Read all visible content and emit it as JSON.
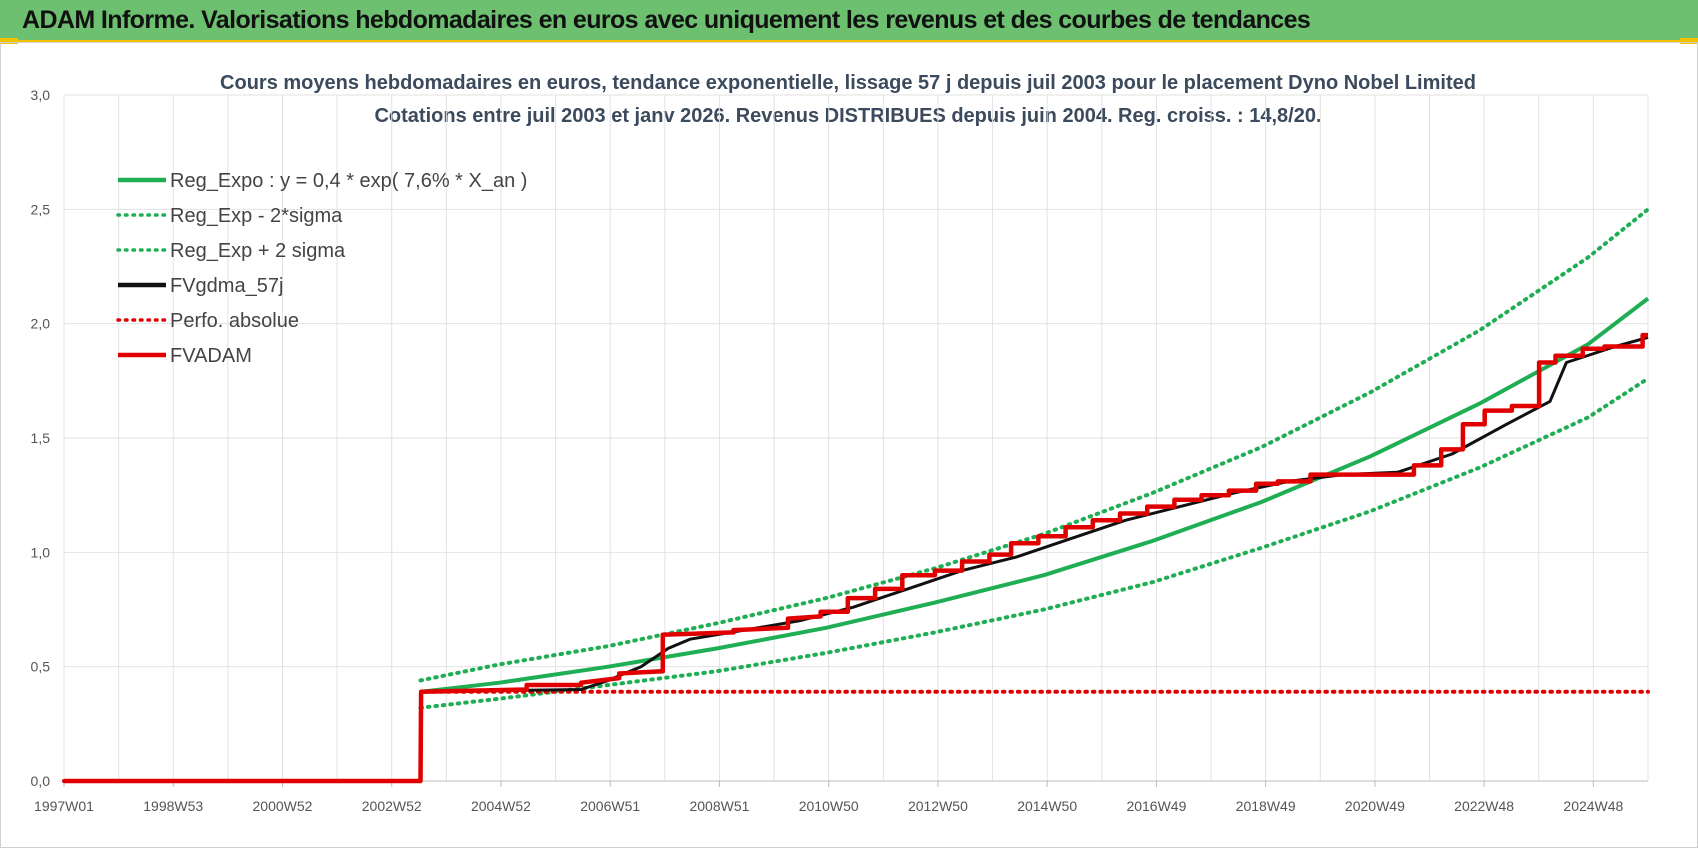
{
  "banner": {
    "title": "ADAM Informe. Valorisations hebdomadaires en euros avec uniquement les revenus et des courbes de tendances"
  },
  "chart_data": {
    "type": "line",
    "title": "Cours moyens  hebdomadaires en euros, tendance exponentielle, lissage 57 j depuis juil 2003 pour le placement Dyno Nobel Limited",
    "subtitle": "Cotations entre juil 2003 et janv 2026. Revenus DISTRIBUES depuis juin 2004.  Reg. croiss. : 14,8/20.",
    "xlabel": "",
    "ylabel": "",
    "x_ticks": [
      "1997W01",
      "1998W53",
      "2000W52",
      "2002W52",
      "2004W52",
      "2006W51",
      "2008W51",
      "2010W50",
      "2012W50",
      "2014W50",
      "2016W49",
      "2018W49",
      "2020W49",
      "2022W48",
      "2024W48"
    ],
    "y_ticks": [
      "0,0",
      "0,5",
      "1,0",
      "1,5",
      "2,0",
      "2,5",
      "3,0"
    ],
    "xlim": [
      1997.0,
      2026.1
    ],
    "ylim": [
      0,
      3.0
    ],
    "grid": true,
    "legend_position": "top-left",
    "series": [
      {
        "name": "Reg_Expo : y = 0,4 * exp( 7,6% *  X_an )",
        "color": "#1fae54",
        "style": "solid",
        "x": [
          2003.55,
          2005,
          2007,
          2009,
          2011,
          2013,
          2015,
          2017,
          2019,
          2021,
          2023,
          2025,
          2026.1
        ],
        "y": [
          0.39,
          0.43,
          0.5,
          0.58,
          0.67,
          0.78,
          0.9,
          1.05,
          1.22,
          1.42,
          1.65,
          1.91,
          2.11
        ]
      },
      {
        "name": "Reg_Exp - 2*sigma",
        "color": "#1fae54",
        "style": "dotted",
        "x": [
          2003.55,
          2005,
          2007,
          2009,
          2011,
          2013,
          2015,
          2017,
          2019,
          2021,
          2023,
          2025,
          2026.1
        ],
        "y": [
          0.32,
          0.36,
          0.42,
          0.48,
          0.56,
          0.65,
          0.75,
          0.87,
          1.02,
          1.18,
          1.37,
          1.59,
          1.76
        ]
      },
      {
        "name": "Reg_Exp + 2 sigma",
        "color": "#1fae54",
        "style": "dotted",
        "x": [
          2003.55,
          2005,
          2007,
          2009,
          2011,
          2013,
          2015,
          2017,
          2019,
          2021,
          2023,
          2025,
          2026.1
        ],
        "y": [
          0.44,
          0.51,
          0.59,
          0.69,
          0.8,
          0.93,
          1.08,
          1.26,
          1.46,
          1.7,
          1.97,
          2.29,
          2.5
        ]
      },
      {
        "name": "FVgdma_57j",
        "color": "#111111",
        "style": "solid",
        "x": [
          1997.0,
          2003.55,
          2003.56,
          2006.5,
          2007.0,
          2007.6,
          2008.1,
          2008.5,
          2009.5,
          2010.5,
          2011.5,
          2012.5,
          2013.5,
          2014.5,
          2015.5,
          2016.5,
          2017.5,
          2018.5,
          2019.5,
          2020.5,
          2021.5,
          2022.5,
          2023.5,
          2024.3,
          2024.6,
          2025.5,
          2026.1
        ],
        "y": [
          0,
          0,
          0.39,
          0.4,
          0.44,
          0.5,
          0.58,
          0.62,
          0.66,
          0.7,
          0.76,
          0.84,
          0.92,
          0.98,
          1.06,
          1.14,
          1.2,
          1.26,
          1.31,
          1.34,
          1.35,
          1.43,
          1.56,
          1.66,
          1.83,
          1.9,
          1.94
        ]
      },
      {
        "name": "Perfo. absolue",
        "color": "#e00000",
        "style": "dotted",
        "x": [
          1997.0,
          2003.55,
          2003.56,
          2026.1
        ],
        "y": [
          0,
          0,
          0.39,
          0.39
        ]
      },
      {
        "name": "FVADAM",
        "color": "#e00000",
        "style": "solid",
        "x": [
          1997.0,
          2003.55,
          2003.56,
          2005.5,
          2005.5,
          2006.5,
          2006.5,
          2007.2,
          2007.2,
          2008.0,
          2008.0,
          2009.3,
          2009.3,
          2010.3,
          2010.3,
          2010.9,
          2010.9,
          2011.4,
          2011.4,
          2011.9,
          2011.9,
          2012.4,
          2012.4,
          2013.0,
          2013.0,
          2013.5,
          2013.5,
          2014.0,
          2014.0,
          2014.4,
          2014.4,
          2014.9,
          2014.9,
          2015.4,
          2015.4,
          2015.9,
          2015.9,
          2016.4,
          2016.4,
          2016.9,
          2016.9,
          2017.4,
          2017.4,
          2017.9,
          2017.9,
          2018.4,
          2018.4,
          2018.9,
          2018.9,
          2019.3,
          2019.3,
          2019.9,
          2019.9,
          2021.8,
          2021.8,
          2022.3,
          2022.3,
          2022.7,
          2022.7,
          2023.1,
          2023.1,
          2023.6,
          2023.6,
          2024.1,
          2024.1,
          2024.4,
          2024.4,
          2024.9,
          2024.9,
          2025.3,
          2025.3,
          2026.0,
          2026.0,
          2026.1
        ],
        "y": [
          0,
          0,
          0.39,
          0.4,
          0.42,
          0.42,
          0.43,
          0.45,
          0.47,
          0.48,
          0.64,
          0.65,
          0.66,
          0.67,
          0.71,
          0.72,
          0.74,
          0.74,
          0.8,
          0.8,
          0.84,
          0.84,
          0.9,
          0.9,
          0.92,
          0.92,
          0.96,
          0.96,
          0.99,
          0.99,
          1.04,
          1.04,
          1.07,
          1.07,
          1.11,
          1.11,
          1.14,
          1.14,
          1.17,
          1.17,
          1.2,
          1.2,
          1.23,
          1.23,
          1.25,
          1.25,
          1.27,
          1.27,
          1.3,
          1.3,
          1.31,
          1.31,
          1.34,
          1.34,
          1.38,
          1.38,
          1.45,
          1.45,
          1.56,
          1.56,
          1.62,
          1.62,
          1.64,
          1.64,
          1.83,
          1.83,
          1.86,
          1.86,
          1.89,
          1.89,
          1.9,
          1.9,
          1.95,
          1.95
        ]
      }
    ]
  }
}
